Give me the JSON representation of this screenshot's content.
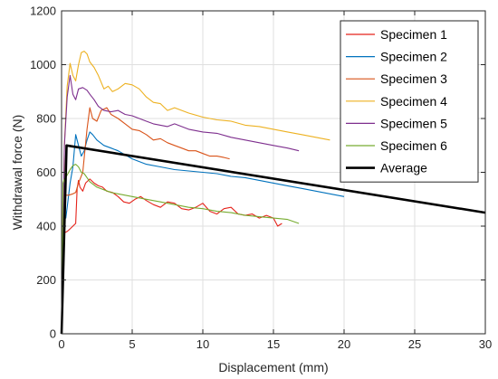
{
  "chart_data": {
    "type": "line",
    "xlabel": "Displacement (mm)",
    "ylabel": "Withdrawal force (N)",
    "xlim": [
      0,
      30
    ],
    "ylim": [
      0,
      1200
    ],
    "xticks": [
      "0",
      "5",
      "10",
      "15",
      "20",
      "25",
      "30"
    ],
    "yticks": [
      "0",
      "200",
      "400",
      "600",
      "800",
      "1000",
      "1200"
    ],
    "grid": true,
    "legend_position": "top-right",
    "series": [
      {
        "name": "Specimen 1",
        "color": "#e5231b",
        "x": [
          0,
          0.05,
          0.1,
          0.2,
          0.4,
          0.6,
          0.8,
          1.0,
          1.1,
          1.2,
          1.3,
          1.5,
          1.7,
          2.0,
          2.3,
          2.6,
          2.9,
          3.2,
          3.6,
          4.0,
          4.4,
          4.8,
          5.2,
          5.6,
          6.0,
          6.5,
          7.0,
          7.5,
          8.0,
          8.5,
          9.0,
          9.5,
          10.0,
          10.5,
          11.0,
          11.5,
          12.0,
          12.5,
          13.0,
          13.5,
          14.0,
          14.5,
          15.0,
          15.3,
          15.6
        ],
        "y": [
          0,
          150,
          360,
          375,
          380,
          390,
          400,
          410,
          540,
          570,
          545,
          530,
          560,
          575,
          560,
          550,
          545,
          530,
          525,
          510,
          490,
          485,
          500,
          510,
          495,
          480,
          470,
          490,
          485,
          465,
          460,
          470,
          485,
          455,
          445,
          465,
          470,
          445,
          440,
          445,
          430,
          440,
          430,
          400,
          410
        ]
      },
      {
        "name": "Specimen 2",
        "color": "#0072bd",
        "x": [
          0,
          0.1,
          0.2,
          0.3,
          0.4,
          0.6,
          0.8,
          1.0,
          1.2,
          1.4,
          1.6,
          1.8,
          2.0,
          2.2,
          2.5,
          3.0,
          3.5,
          4.0,
          4.5,
          5.0,
          5.5,
          6.0,
          7.0,
          8.0,
          9.0,
          10.0,
          11.0,
          12.0,
          13.0,
          14.0,
          15.0,
          16.0,
          17.0,
          18.0,
          19.0,
          20.0
        ],
        "y": [
          0,
          420,
          440,
          430,
          470,
          560,
          620,
          740,
          700,
          660,
          680,
          720,
          750,
          740,
          720,
          700,
          690,
          680,
          665,
          650,
          640,
          630,
          620,
          610,
          605,
          600,
          595,
          585,
          580,
          570,
          560,
          550,
          540,
          530,
          520,
          510
        ]
      },
      {
        "name": "Specimen 3",
        "color": "#d95319",
        "x": [
          0,
          0.05,
          0.1,
          0.2,
          0.5,
          0.8,
          1.0,
          1.2,
          1.5,
          1.8,
          2.0,
          2.2,
          2.5,
          2.8,
          3.2,
          3.5,
          4.0,
          4.5,
          5.0,
          5.5,
          6.0,
          6.5,
          7.0,
          7.5,
          8.0,
          8.5,
          9.0,
          9.5,
          10.0,
          10.5,
          11.0,
          11.5,
          11.9
        ],
        "y": [
          0,
          300,
          510,
          515,
          515,
          520,
          525,
          560,
          600,
          760,
          840,
          800,
          790,
          830,
          840,
          815,
          800,
          780,
          760,
          755,
          740,
          720,
          725,
          710,
          700,
          690,
          680,
          680,
          670,
          660,
          660,
          655,
          650
        ]
      },
      {
        "name": "Specimen 4",
        "color": "#edb120",
        "x": [
          0,
          0.2,
          0.4,
          0.6,
          0.8,
          1.0,
          1.2,
          1.4,
          1.6,
          1.8,
          2.0,
          2.3,
          2.6,
          3.0,
          3.3,
          3.6,
          4.0,
          4.5,
          5.0,
          5.5,
          6.0,
          6.5,
          7.0,
          7.5,
          8.0,
          9.0,
          10.0,
          11.0,
          12.0,
          13.0,
          14.0,
          15.0,
          16.0,
          17.0,
          18.0,
          19.0
        ],
        "y": [
          0,
          700,
          920,
          1005,
          960,
          940,
          1000,
          1045,
          1050,
          1040,
          1010,
          990,
          960,
          910,
          920,
          900,
          910,
          930,
          925,
          910,
          880,
          860,
          855,
          830,
          840,
          820,
          805,
          795,
          790,
          775,
          770,
          760,
          750,
          740,
          730,
          720
        ]
      },
      {
        "name": "Specimen 5",
        "color": "#7e2f8e",
        "x": [
          0,
          0.2,
          0.4,
          0.6,
          0.8,
          1.0,
          1.2,
          1.5,
          1.8,
          2.0,
          2.3,
          2.6,
          3.0,
          3.5,
          4.0,
          4.5,
          5.0,
          5.5,
          6.0,
          6.5,
          7.0,
          7.5,
          8.0,
          9.0,
          10.0,
          11.0,
          12.0,
          13.0,
          14.0,
          15.0,
          16.0,
          16.8
        ],
        "y": [
          0,
          700,
          880,
          960,
          890,
          870,
          910,
          915,
          905,
          890,
          870,
          845,
          830,
          825,
          830,
          815,
          810,
          800,
          790,
          780,
          775,
          770,
          780,
          760,
          750,
          745,
          730,
          720,
          710,
          700,
          690,
          680
        ]
      },
      {
        "name": "Specimen 6",
        "color": "#77ac30",
        "x": [
          0,
          0.1,
          0.2,
          0.4,
          0.6,
          0.8,
          1.0,
          1.2,
          1.4,
          1.6,
          1.8,
          2.0,
          2.5,
          3.0,
          3.5,
          4.0,
          5.0,
          6.0,
          7.0,
          8.0,
          9.0,
          10.0,
          11.0,
          12.0,
          13.0,
          14.0,
          15.0,
          16.0,
          16.8
        ],
        "y": [
          0,
          560,
          575,
          590,
          610,
          625,
          630,
          620,
          600,
          595,
          580,
          565,
          545,
          535,
          525,
          520,
          510,
          500,
          490,
          480,
          470,
          465,
          455,
          450,
          440,
          435,
          430,
          425,
          410
        ]
      },
      {
        "name": "Average",
        "color": "#000000",
        "x": [
          0,
          0.35,
          30
        ],
        "y": [
          0,
          700,
          450
        ]
      }
    ]
  }
}
